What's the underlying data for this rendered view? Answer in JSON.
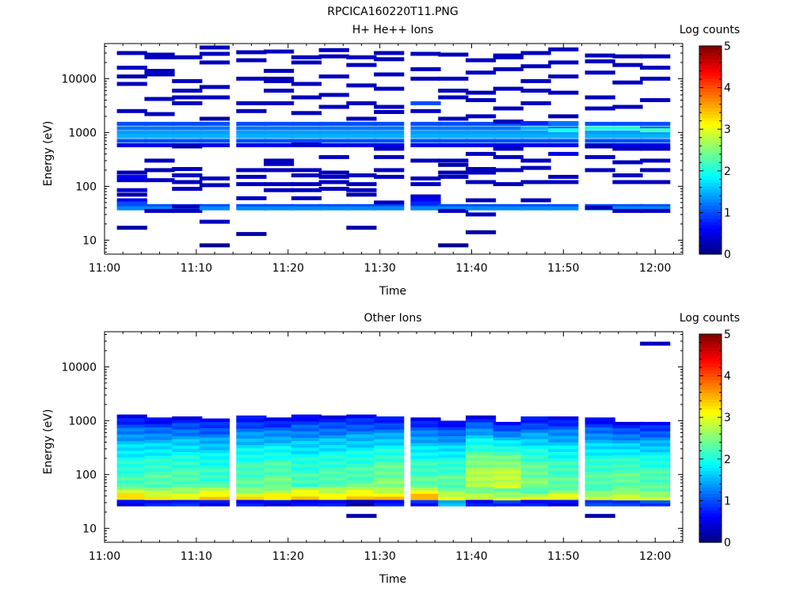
{
  "figure_title": "RPCICA160220T11.PNG",
  "chart_data": [
    {
      "type": "heatmap",
      "title": "H+ He++ Ions",
      "xlabel": "Time",
      "ylabel": "Energy (eV)",
      "x_ticks": [
        "11:00",
        "11:10",
        "11:20",
        "11:30",
        "11:40",
        "11:50",
        "12:00"
      ],
      "y_ticks": [
        "10",
        "100",
        "1000",
        "10000"
      ],
      "y_scale": "log",
      "ylim": [
        5.5,
        45000
      ],
      "xlim": [
        "11:00",
        "12:03"
      ],
      "colorbar": {
        "label": "Log counts",
        "range": [
          0,
          5
        ],
        "ticks": [
          "0",
          "1",
          "2",
          "3",
          "4",
          "5"
        ],
        "colormap": "jet"
      },
      "time_bins": [
        "11:03",
        "11:06",
        "11:09",
        "11:12",
        "11:16",
        "11:19",
        "11:22",
        "11:25",
        "11:28",
        "11:31",
        "11:35",
        "11:38",
        "11:41",
        "11:44",
        "11:47",
        "11:50",
        "11:54",
        "11:57",
        "12:00"
      ],
      "common": [
        {
          "e": 1450,
          "v": 1.0
        },
        {
          "e": 1200,
          "v": 1.2
        },
        {
          "e": 1000,
          "v": 1.4
        },
        {
          "e": 850,
          "v": 1.5
        },
        {
          "e": 700,
          "v": 1.0
        },
        {
          "e": 580,
          "v": 0.5
        },
        {
          "e": 43,
          "v": 1.0
        },
        {
          "e": 39,
          "v": 1.3
        }
      ],
      "extra": [
        [
          [
            30000,
            0.3
          ],
          [
            16000,
            0.3
          ],
          [
            11000,
            0.2
          ],
          [
            8000,
            0.3
          ],
          [
            2500,
            0.3
          ],
          [
            180,
            0.3
          ],
          [
            150,
            0.6
          ],
          [
            130,
            0.4
          ],
          [
            85,
            0.4
          ],
          [
            70,
            0.2
          ],
          [
            55,
            0.6
          ],
          [
            48,
            1.0
          ],
          [
            17,
            0.2
          ]
        ],
        [
          [
            28000,
            0.3
          ],
          [
            25000,
            0.3
          ],
          [
            14000,
            0.3
          ],
          [
            12000,
            0.3
          ],
          [
            4200,
            0.3
          ],
          [
            2200,
            0.3
          ],
          [
            300,
            0.3
          ],
          [
            200,
            0.3
          ],
          [
            130,
            0.3
          ],
          [
            35,
            0.3
          ]
        ],
        [
          [
            25000,
            0.3
          ],
          [
            9000,
            0.3
          ],
          [
            6000,
            0.3
          ],
          [
            4500,
            0.3
          ],
          [
            3500,
            0.3
          ],
          [
            550,
            0.2
          ],
          [
            210,
            0.3
          ],
          [
            160,
            0.3
          ],
          [
            120,
            0.3
          ],
          [
            90,
            0.3
          ],
          [
            42,
            0.3
          ],
          [
            35,
            0.3
          ]
        ],
        [
          [
            38000,
            0.3
          ],
          [
            29000,
            0.3
          ],
          [
            20000,
            0.3
          ],
          [
            7000,
            0.3
          ],
          [
            4500,
            0.3
          ],
          [
            1800,
            0.2
          ],
          [
            140,
            0.3
          ],
          [
            105,
            0.3
          ],
          [
            22,
            0.3
          ],
          [
            8,
            0.1
          ]
        ],
        [
          [
            31000,
            0.3
          ],
          [
            22000,
            0.3
          ],
          [
            10000,
            0.3
          ],
          [
            3500,
            0.3
          ],
          [
            2500,
            0.3
          ],
          [
            200,
            0.3
          ],
          [
            150,
            0.3
          ],
          [
            110,
            0.3
          ],
          [
            60,
            0.3
          ],
          [
            13,
            0.2
          ]
        ],
        [
          [
            32000,
            0.3
          ],
          [
            14000,
            0.3
          ],
          [
            10000,
            0.2
          ],
          [
            9000,
            0.3
          ],
          [
            6000,
            0.3
          ],
          [
            3500,
            0.3
          ],
          [
            300,
            0.3
          ],
          [
            260,
            0.3
          ],
          [
            200,
            0.3
          ],
          [
            110,
            0.3
          ],
          [
            85,
            0.3
          ]
        ],
        [
          [
            25000,
            0.3
          ],
          [
            20000,
            0.3
          ],
          [
            8000,
            0.3
          ],
          [
            4500,
            0.3
          ],
          [
            2300,
            0.3
          ],
          [
            600,
            0.3
          ],
          [
            200,
            0.3
          ],
          [
            160,
            0.3
          ],
          [
            110,
            0.3
          ],
          [
            85,
            0.3
          ],
          [
            60,
            0.3
          ]
        ],
        [
          [
            34000,
            0.3
          ],
          [
            26000,
            0.3
          ],
          [
            11000,
            0.3
          ],
          [
            5000,
            0.3
          ],
          [
            3000,
            0.3
          ],
          [
            350,
            0.3
          ],
          [
            180,
            0.3
          ],
          [
            150,
            0.3
          ],
          [
            120,
            0.3
          ],
          [
            90,
            0.3
          ]
        ],
        [
          [
            25000,
            0.3
          ],
          [
            18000,
            0.3
          ],
          [
            7500,
            0.3
          ],
          [
            3500,
            0.3
          ],
          [
            1800,
            0.3
          ],
          [
            160,
            0.3
          ],
          [
            110,
            0.3
          ],
          [
            85,
            0.3
          ],
          [
            70,
            0.2
          ],
          [
            17,
            0.2
          ]
        ],
        [
          [
            30000,
            0.3
          ],
          [
            23000,
            0.3
          ],
          [
            12000,
            0.3
          ],
          [
            6500,
            0.3
          ],
          [
            3000,
            0.3
          ],
          [
            2400,
            0.3
          ],
          [
            500,
            0.3
          ],
          [
            350,
            0.3
          ],
          [
            200,
            0.3
          ],
          [
            150,
            0.3
          ],
          [
            50,
            0.3
          ]
        ],
        [
          [
            29000,
            0.3
          ],
          [
            15000,
            0.3
          ],
          [
            10000,
            0.3
          ],
          [
            3500,
            1.0
          ],
          [
            2500,
            0.3
          ],
          [
            300,
            0.3
          ],
          [
            140,
            0.3
          ],
          [
            110,
            0.3
          ],
          [
            65,
            0.4
          ],
          [
            55,
            0.6
          ],
          [
            48,
            0.8
          ]
        ],
        [
          [
            28000,
            0.3
          ],
          [
            10000,
            0.3
          ],
          [
            6000,
            0.3
          ],
          [
            4500,
            0.3
          ],
          [
            1800,
            0.3
          ],
          [
            300,
            0.3
          ],
          [
            250,
            0.2
          ],
          [
            180,
            0.3
          ],
          [
            150,
            0.3
          ],
          [
            35,
            0.3
          ],
          [
            8,
            0.1
          ]
        ],
        [
          [
            22000,
            0.3
          ],
          [
            13000,
            0.3
          ],
          [
            5500,
            0.3
          ],
          [
            4000,
            0.3
          ],
          [
            2000,
            0.3
          ],
          [
            400,
            0.3
          ],
          [
            210,
            0.3
          ],
          [
            180,
            0.3
          ],
          [
            120,
            0.3
          ],
          [
            55,
            0.3
          ],
          [
            30,
            0.3
          ],
          [
            14,
            0.2
          ]
        ],
        [
          [
            27000,
            0.3
          ],
          [
            25000,
            0.3
          ],
          [
            15000,
            0.3
          ],
          [
            6500,
            0.3
          ],
          [
            2800,
            0.3
          ],
          [
            1600,
            0.3
          ],
          [
            500,
            0.3
          ],
          [
            350,
            0.3
          ],
          [
            200,
            0.3
          ],
          [
            110,
            0.3
          ]
        ],
        [
          [
            30000,
            0.3
          ],
          [
            17000,
            0.3
          ],
          [
            9000,
            0.3
          ],
          [
            6000,
            0.3
          ],
          [
            3500,
            0.3
          ],
          [
            1500,
            0.8
          ],
          [
            1200,
            1.5
          ],
          [
            300,
            0.3
          ],
          [
            220,
            0.3
          ],
          [
            120,
            0.3
          ],
          [
            55,
            0.3
          ]
        ],
        [
          [
            35000,
            0.3
          ],
          [
            20000,
            0.3
          ],
          [
            11000,
            0.3
          ],
          [
            5500,
            0.3
          ],
          [
            2000,
            0.2
          ],
          [
            1500,
            1.2
          ],
          [
            1100,
            2.0
          ],
          [
            400,
            0.5
          ],
          [
            150,
            0.3
          ],
          [
            120,
            0.3
          ]
        ],
        [
          [
            27000,
            0.3
          ],
          [
            21000,
            0.3
          ],
          [
            13000,
            0.3
          ],
          [
            4500,
            0.3
          ],
          [
            2800,
            0.3
          ],
          [
            1200,
            2.0
          ],
          [
            550,
            0.2
          ],
          [
            350,
            0.3
          ],
          [
            200,
            0.3
          ],
          [
            40,
            0.3
          ]
        ],
        [
          [
            26000,
            0.3
          ],
          [
            18000,
            0.3
          ],
          [
            8500,
            0.3
          ],
          [
            3000,
            0.3
          ],
          [
            1200,
            2.0
          ],
          [
            500,
            0.3
          ],
          [
            280,
            0.3
          ],
          [
            160,
            0.3
          ],
          [
            120,
            0.3
          ],
          [
            35,
            0.3
          ]
        ],
        [
          [
            26000,
            0.3
          ],
          [
            16000,
            0.3
          ],
          [
            10000,
            0.3
          ],
          [
            4000,
            0.3
          ],
          [
            1100,
            2.2
          ],
          [
            500,
            0.3
          ],
          [
            300,
            0.3
          ],
          [
            200,
            0.3
          ],
          [
            120,
            0.3
          ],
          [
            35,
            0.3
          ]
        ]
      ]
    },
    {
      "type": "heatmap",
      "title": "Other Ions",
      "xlabel": "Time",
      "ylabel": "Energy (eV)",
      "x_ticks": [
        "11:00",
        "11:10",
        "11:20",
        "11:30",
        "11:40",
        "11:50",
        "12:00"
      ],
      "y_ticks": [
        "10",
        "100",
        "1000",
        "10000"
      ],
      "y_scale": "log",
      "ylim": [
        5.5,
        45000
      ],
      "xlim": [
        "11:00",
        "12:03"
      ],
      "colorbar": {
        "label": "Log counts",
        "range": [
          0,
          5
        ],
        "ticks": [
          "0",
          "1",
          "2",
          "3",
          "4",
          "5"
        ],
        "colormap": "jet"
      },
      "time_bins": [
        "11:03",
        "11:06",
        "11:09",
        "11:12",
        "11:16",
        "11:19",
        "11:22",
        "11:25",
        "11:28",
        "11:31",
        "11:35",
        "11:38",
        "11:41",
        "11:44",
        "11:47",
        "11:50",
        "11:54",
        "11:57",
        "12:00"
      ],
      "profile": {
        "energy_top": [
          1300,
          1150,
          1200,
          1100,
          1250,
          1150,
          1300,
          1250,
          1300,
          1200,
          1150,
          1000,
          1250,
          950,
          1200,
          1200,
          1150,
          950,
          950
        ],
        "energy_bottom": 26,
        "peak_value": [
          3.5,
          3.3,
          3.3,
          3.6,
          3.3,
          3.4,
          3.5,
          3.4,
          3.6,
          3.5,
          3.7,
          3.2,
          3.1,
          3.1,
          3.0,
          3.2,
          3.0,
          3.2,
          3.1
        ],
        "mid_value": [
          2.2,
          2.3,
          2.3,
          2.2,
          2.3,
          2.4,
          2.2,
          2.3,
          2.3,
          2.5,
          2.3,
          2.3,
          2.8,
          2.9,
          2.5,
          2.3,
          2.3,
          2.4,
          2.3
        ],
        "bottom_value": [
          0.6,
          0.8,
          0.7,
          0.6,
          0.7,
          0.6,
          0.7,
          0.6,
          0.2,
          0.7,
          0.8,
          1.6,
          0.6,
          0.8,
          0.7,
          0.6,
          1.0,
          0.8,
          0.9
        ]
      },
      "isolated": [
        {
          "bin": 8,
          "e": 17,
          "v": 0.2
        },
        {
          "bin": 16,
          "e": 17,
          "v": 0.2
        },
        {
          "bin": 18,
          "e": 27000,
          "v": 0.3
        }
      ]
    }
  ]
}
